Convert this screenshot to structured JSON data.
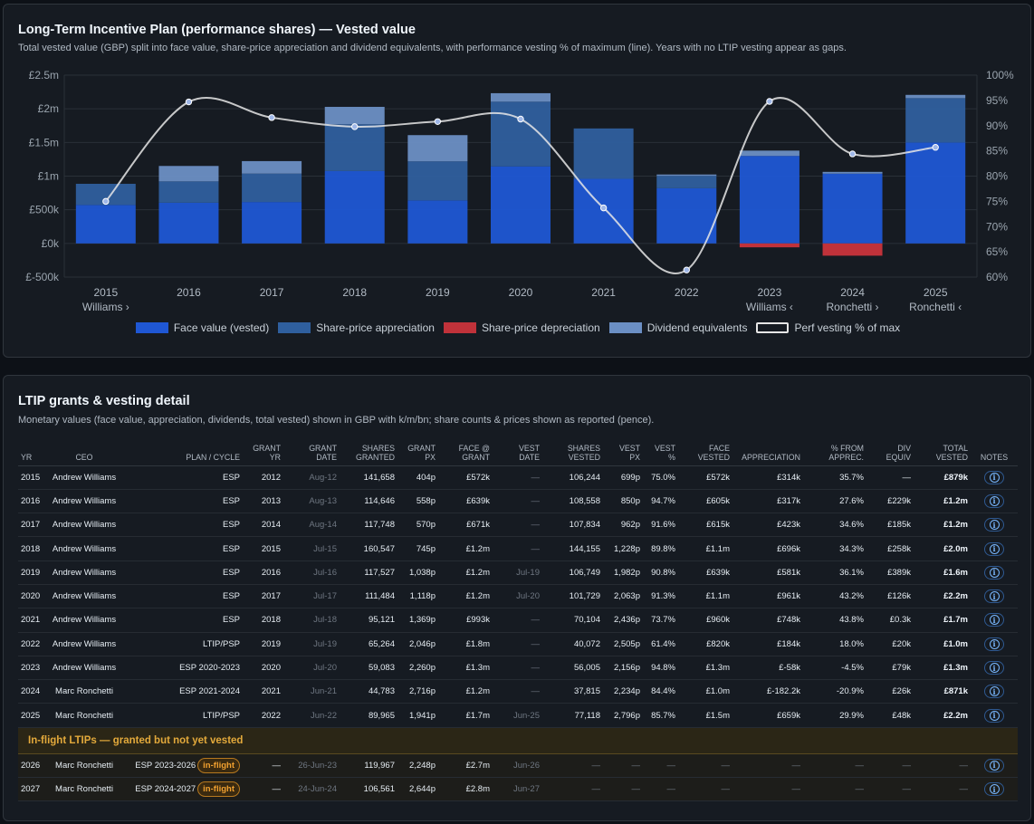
{
  "chart_card": {
    "title": "Long-Term Incentive Plan (performance shares) — Vested value",
    "subtitle": "Total vested value (GBP) split into face value, share-price appreciation and dividend equivalents, with performance vesting % of maximum (line). Years with no LTIP vesting appear as gaps."
  },
  "chart_data": {
    "type": "bar",
    "title": "Long-Term Incentive Plan (performance shares) — Vested value",
    "categories": [
      "2015",
      "2016",
      "2017",
      "2018",
      "2019",
      "2020",
      "2021",
      "2022",
      "2023",
      "2024",
      "2025"
    ],
    "category_sublabels": [
      "Williams ›",
      "",
      "",
      "",
      "",
      "",
      "",
      "",
      "Williams ‹",
      "Ronchetti ›",
      "Ronchetti ‹"
    ],
    "y_ticks": [
      "£-500k",
      "£0k",
      "£500k",
      "£1m",
      "£1.5m",
      "£2m",
      "£2.5m"
    ],
    "y2_ticks": [
      "60%",
      "65%",
      "70%",
      "75%",
      "80%",
      "85%",
      "90%",
      "95%",
      "100%"
    ],
    "ylim": [
      -500,
      2500
    ],
    "y2lim": [
      60,
      100
    ],
    "series": [
      {
        "name": "Face value (vested)",
        "color": "#1f57d4",
        "values": [
          572,
          605,
          615,
          1075,
          639,
          1145,
          960,
          820,
          1300,
          1037,
          1500
        ]
      },
      {
        "name": "Share-price appreciation",
        "color": "#2f5f9e",
        "values": [
          314,
          317,
          423,
          696,
          581,
          961,
          748,
          184,
          0,
          0,
          659
        ]
      },
      {
        "name": "Share-price depreciation",
        "color": "#c0323a",
        "values": [
          0,
          0,
          0,
          0,
          0,
          0,
          0,
          0,
          -58,
          -182.2,
          0
        ]
      },
      {
        "name": "Dividend equivalents",
        "color": "#6b8fc4",
        "values": [
          0,
          229,
          185,
          258,
          389,
          126,
          0.3,
          20,
          79,
          26,
          48
        ]
      },
      {
        "name": "Perf vesting % of max",
        "color": "#e6e6e6",
        "type": "line",
        "axis": "right",
        "values": [
          75.0,
          94.7,
          91.6,
          89.8,
          90.8,
          91.3,
          73.7,
          61.4,
          94.8,
          84.4,
          85.7
        ]
      }
    ],
    "legend_position": "bottom",
    "grid": true
  },
  "table_card": {
    "title": "LTIP grants & vesting detail",
    "subtitle": "Monetary values (face value, appreciation, dividends, total vested) shown in GBP with k/m/bn; share counts & prices shown as reported (pence)."
  },
  "table": {
    "headers": [
      [
        "YR"
      ],
      [
        "CEO"
      ],
      [
        "PLAN / CYCLE"
      ],
      [
        "GRANT",
        "YR"
      ],
      [
        "GRANT",
        "DATE"
      ],
      [
        "SHARES",
        "GRANTED"
      ],
      [
        "GRANT",
        "PX"
      ],
      [
        "FACE @",
        "GRANT"
      ],
      [
        "VEST",
        "DATE"
      ],
      [
        "SHARES",
        "VESTED"
      ],
      [
        "VEST",
        "PX"
      ],
      [
        "VEST",
        "%"
      ],
      [
        "FACE",
        "VESTED"
      ],
      [
        "APPRECIATION"
      ],
      [
        "% FROM",
        "APPREC."
      ],
      [
        "DIV",
        "EQUIV"
      ],
      [
        "TOTAL",
        "VESTED"
      ],
      [
        "NOTES"
      ]
    ],
    "rows": [
      [
        "2015",
        "Andrew Williams",
        "ESP",
        "2012",
        "Aug-12",
        "141,658",
        "404p",
        "£572k",
        "—",
        "106,244",
        "699p",
        "75.0%",
        "£572k",
        "£314k",
        "35.7%",
        "—",
        "£879k"
      ],
      [
        "2016",
        "Andrew Williams",
        "ESP",
        "2013",
        "Aug-13",
        "114,646",
        "558p",
        "£639k",
        "—",
        "108,558",
        "850p",
        "94.7%",
        "£605k",
        "£317k",
        "27.6%",
        "£229k",
        "£1.2m"
      ],
      [
        "2017",
        "Andrew Williams",
        "ESP",
        "2014",
        "Aug-14",
        "117,748",
        "570p",
        "£671k",
        "—",
        "107,834",
        "962p",
        "91.6%",
        "£615k",
        "£423k",
        "34.6%",
        "£185k",
        "£1.2m"
      ],
      [
        "2018",
        "Andrew Williams",
        "ESP",
        "2015",
        "Jul-15",
        "160,547",
        "745p",
        "£1.2m",
        "—",
        "144,155",
        "1,228p",
        "89.8%",
        "£1.1m",
        "£696k",
        "34.3%",
        "£258k",
        "£2.0m"
      ],
      [
        "2019",
        "Andrew Williams",
        "ESP",
        "2016",
        "Jul-16",
        "117,527",
        "1,038p",
        "£1.2m",
        "Jul-19",
        "106,749",
        "1,982p",
        "90.8%",
        "£639k",
        "£581k",
        "36.1%",
        "£389k",
        "£1.6m"
      ],
      [
        "2020",
        "Andrew Williams",
        "ESP",
        "2017",
        "Jul-17",
        "111,484",
        "1,118p",
        "£1.2m",
        "Jul-20",
        "101,729",
        "2,063p",
        "91.3%",
        "£1.1m",
        "£961k",
        "43.2%",
        "£126k",
        "£2.2m"
      ],
      [
        "2021",
        "Andrew Williams",
        "ESP",
        "2018",
        "Jul-18",
        "95,121",
        "1,369p",
        "£993k",
        "—",
        "70,104",
        "2,436p",
        "73.7%",
        "£960k",
        "£748k",
        "43.8%",
        "£0.3k",
        "£1.7m"
      ],
      [
        "2022",
        "Andrew Williams",
        "LTIP/PSP",
        "2019",
        "Jul-19",
        "65,264",
        "2,046p",
        "£1.8m",
        "—",
        "40,072",
        "2,505p",
        "61.4%",
        "£820k",
        "£184k",
        "18.0%",
        "£20k",
        "£1.0m"
      ],
      [
        "2023",
        "Andrew Williams",
        "ESP 2020-2023",
        "2020",
        "Jul-20",
        "59,083",
        "2,260p",
        "£1.3m",
        "—",
        "56,005",
        "2,156p",
        "94.8%",
        "£1.3m",
        "£-58k",
        "-4.5%",
        "£79k",
        "£1.3m"
      ],
      [
        "2024",
        "Marc Ronchetti",
        "ESP 2021-2024",
        "2021",
        "Jun-21",
        "44,783",
        "2,716p",
        "£1.2m",
        "—",
        "37,815",
        "2,234p",
        "84.4%",
        "£1.0m",
        "£-182.2k",
        "-20.9%",
        "£26k",
        "£871k"
      ],
      [
        "2025",
        "Marc Ronchetti",
        "LTIP/PSP",
        "2022",
        "Jun-22",
        "89,965",
        "1,941p",
        "£1.7m",
        "Jun-25",
        "77,118",
        "2,796p",
        "85.7%",
        "£1.5m",
        "£659k",
        "29.9%",
        "£48k",
        "£2.2m"
      ]
    ],
    "inflight_section_label": "In-flight LTIPs — granted but not yet vested",
    "inflight_badge": "in-flight",
    "inflight_rows": [
      [
        "2026",
        "Marc Ronchetti",
        "ESP 2023-2026",
        "—",
        "26-Jun-23",
        "119,967",
        "2,248p",
        "£2.7m",
        "Jun-26",
        "—",
        "—",
        "—",
        "—",
        "—",
        "—",
        "—",
        "—"
      ],
      [
        "2027",
        "Marc Ronchetti",
        "ESP 2024-2027",
        "—",
        "24-Jun-24",
        "106,561",
        "2,644p",
        "£2.8m",
        "Jun-27",
        "—",
        "—",
        "—",
        "—",
        "—",
        "—",
        "—",
        "—"
      ]
    ],
    "notes_icon": "info-icon",
    "notes_glyph": "i"
  }
}
